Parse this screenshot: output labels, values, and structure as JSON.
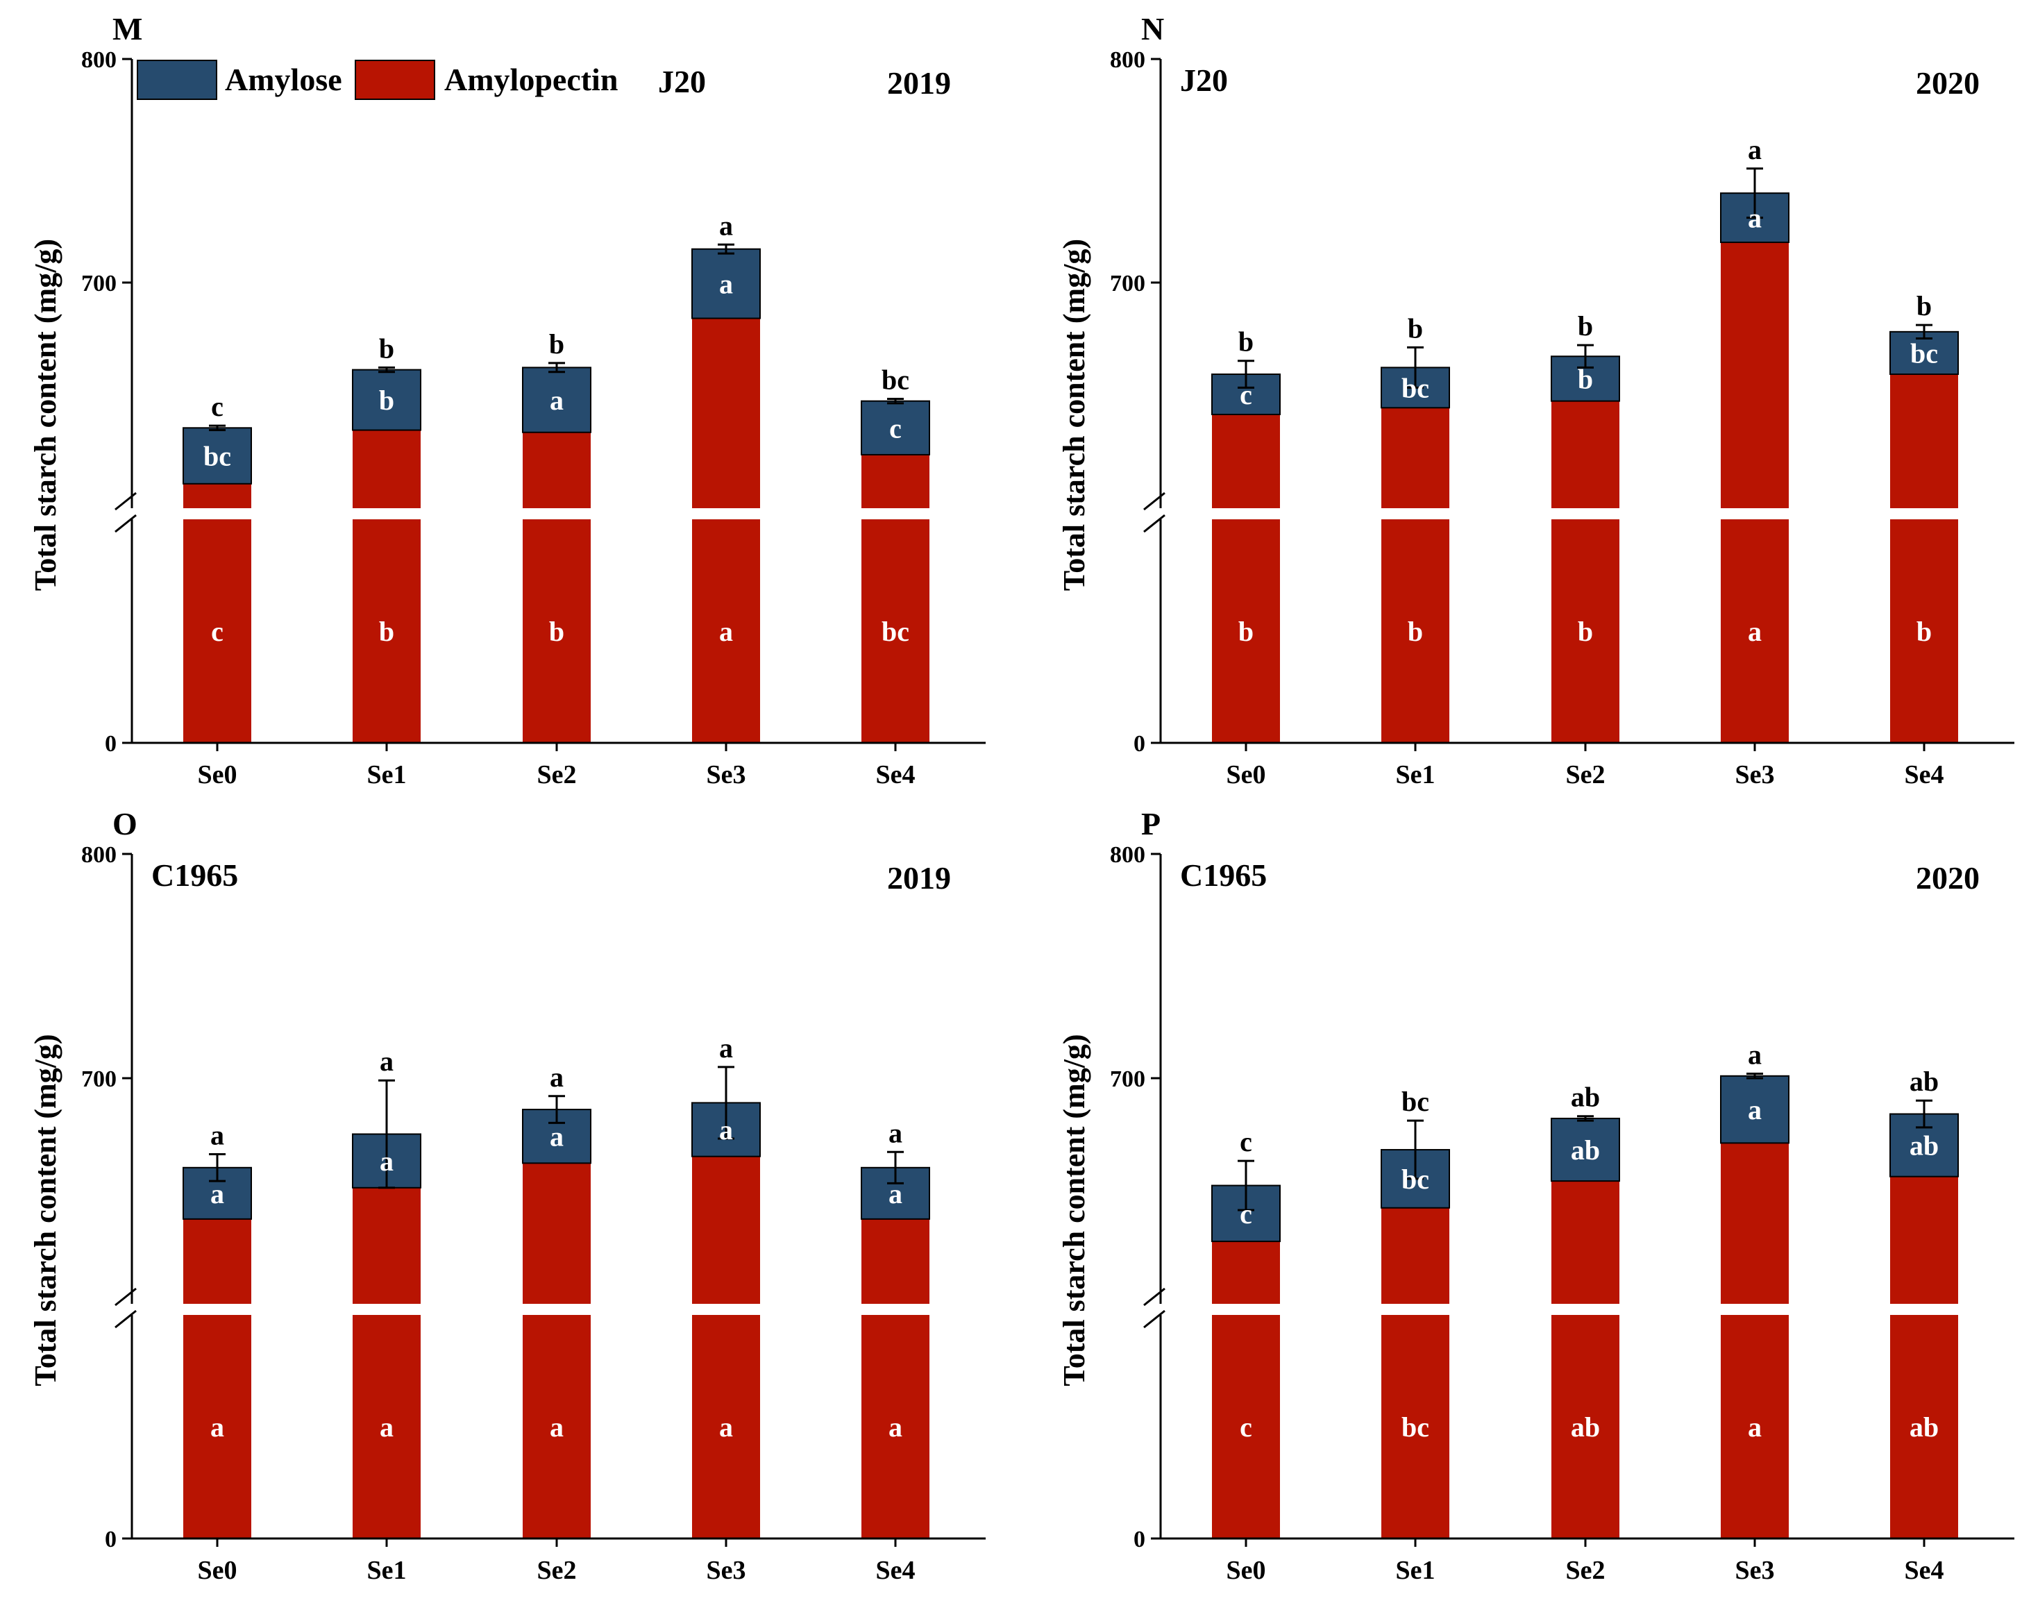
{
  "legend": {
    "amylose": "Amylose",
    "amylopectin": "Amylopectin"
  },
  "colors": {
    "amylose": "#264b6e",
    "amylopectin": "#b81402",
    "axis": "#000000"
  },
  "chart_data": [
    {
      "type": "bar",
      "stacked": true,
      "panel_label": "M",
      "cultivar": "J20",
      "year": "2019",
      "ylabel": "Total starch content (mg/g)",
      "y_ticks": [
        "0",
        "700",
        "800"
      ],
      "y_axis_break": [
        0,
        600
      ],
      "ylim": [
        0,
        800
      ],
      "categories": [
        "Se0",
        "Se1",
        "Se2",
        "Se3",
        "Se4"
      ],
      "series": [
        {
          "name": "Amylopectin",
          "values": [
            610,
            634,
            633,
            684,
            623
          ],
          "letters": [
            "c",
            "b",
            "b",
            "a",
            "bc"
          ]
        },
        {
          "name": "Amylose",
          "values": [
            25,
            27,
            29,
            31,
            24
          ],
          "letters": [
            "bc",
            "b",
            "a",
            "a",
            "c"
          ]
        }
      ],
      "totals": [
        635,
        661,
        662,
        715,
        647
      ],
      "errors": [
        1,
        1,
        2,
        2,
        1
      ],
      "total_letters": [
        "c",
        "b",
        "b",
        "a",
        "bc"
      ]
    },
    {
      "type": "bar",
      "stacked": true,
      "panel_label": "N",
      "cultivar": "J20",
      "year": "2020",
      "ylabel": "Total starch content (mg/g)",
      "y_ticks": [
        "0",
        "700",
        "800"
      ],
      "y_axis_break": [
        0,
        600
      ],
      "ylim": [
        0,
        800
      ],
      "categories": [
        "Se0",
        "Se1",
        "Se2",
        "Se3",
        "Se4"
      ],
      "series": [
        {
          "name": "Amylopectin",
          "values": [
            641,
            644,
            647,
            718,
            659
          ],
          "letters": [
            "b",
            "b",
            "b",
            "a",
            "b"
          ]
        },
        {
          "name": "Amylose",
          "values": [
            18,
            18,
            20,
            22,
            19
          ],
          "letters": [
            "c",
            "bc",
            "b",
            "a",
            "bc"
          ]
        }
      ],
      "totals": [
        659,
        662,
        667,
        740,
        678
      ],
      "errors": [
        6,
        9,
        5,
        11,
        3
      ],
      "total_letters": [
        "b",
        "b",
        "b",
        "a",
        "b"
      ]
    },
    {
      "type": "bar",
      "stacked": true,
      "panel_label": "O",
      "cultivar": "C1965",
      "year": "2019",
      "ylabel": "Total starch content (mg/g)",
      "y_ticks": [
        "0",
        "700",
        "800"
      ],
      "y_axis_break": [
        0,
        600
      ],
      "ylim": [
        0,
        800
      ],
      "categories": [
        "Se0",
        "Se1",
        "Se2",
        "Se3",
        "Se4"
      ],
      "series": [
        {
          "name": "Amylopectin",
          "values": [
            637,
            651,
            662,
            665,
            637
          ],
          "letters": [
            "a",
            "a",
            "a",
            "a",
            "a"
          ]
        },
        {
          "name": "Amylose",
          "values": [
            23,
            24,
            24,
            24,
            23
          ],
          "letters": [
            "a",
            "a",
            "a",
            "a",
            "a"
          ]
        }
      ],
      "totals": [
        660,
        675,
        686,
        689,
        660
      ],
      "errors": [
        6,
        24,
        6,
        16,
        7
      ],
      "total_letters": [
        "a",
        "a",
        "a",
        "a",
        "a"
      ]
    },
    {
      "type": "bar",
      "stacked": true,
      "panel_label": "P",
      "cultivar": "C1965",
      "year": "2020",
      "ylabel": "Total starch content (mg/g)",
      "y_ticks": [
        "0",
        "700",
        "800"
      ],
      "y_axis_break": [
        0,
        600
      ],
      "ylim": [
        0,
        800
      ],
      "categories": [
        "Se0",
        "Se1",
        "Se2",
        "Se3",
        "Se4"
      ],
      "series": [
        {
          "name": "Amylopectin",
          "values": [
            627,
            642,
            654,
            671,
            656
          ],
          "letters": [
            "c",
            "bc",
            "ab",
            "a",
            "ab"
          ]
        },
        {
          "name": "Amylose",
          "values": [
            25,
            26,
            28,
            30,
            28
          ],
          "letters": [
            "c",
            "bc",
            "ab",
            "a",
            "ab"
          ]
        }
      ],
      "totals": [
        652,
        668,
        682,
        701,
        684
      ],
      "errors": [
        11,
        13,
        1,
        1,
        6
      ],
      "total_letters": [
        "c",
        "bc",
        "ab",
        "a",
        "ab"
      ]
    }
  ]
}
